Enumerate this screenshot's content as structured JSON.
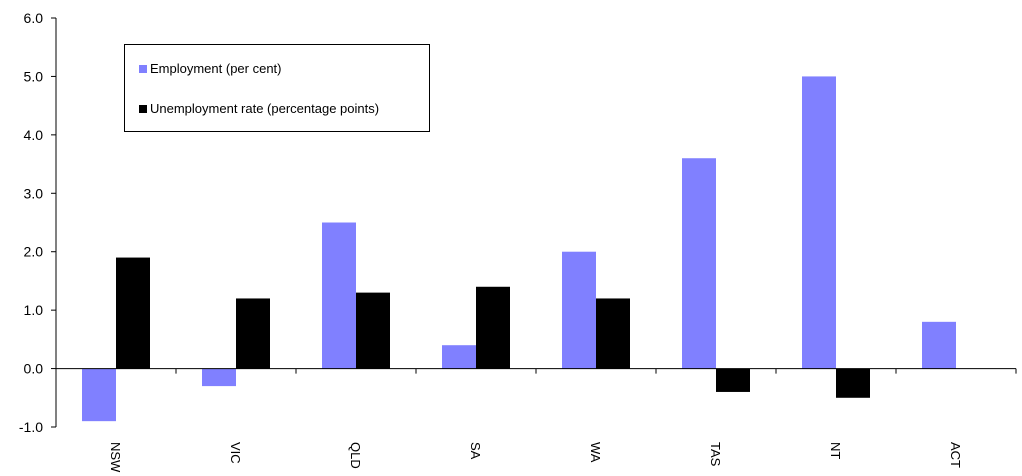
{
  "chart_data": {
    "type": "bar",
    "title": "",
    "xlabel": "",
    "ylabel": "",
    "categories": [
      "NSW",
      "VIC",
      "QLD",
      "SA",
      "WA",
      "TAS",
      "NT",
      "ACT"
    ],
    "series": [
      {
        "name": "Employment (per cent)",
        "color": "#8080ff",
        "values": [
          -0.9,
          -0.3,
          2.5,
          0.4,
          2.0,
          3.6,
          5.0,
          0.8
        ]
      },
      {
        "name": "Unemployment rate (percentage points)",
        "color": "#000000",
        "values": [
          1.9,
          1.2,
          1.3,
          1.4,
          1.2,
          -0.4,
          -0.5,
          null
        ]
      }
    ],
    "ylim": [
      -1.0,
      6.0
    ],
    "yticks": [
      "-1.0",
      "0.0",
      "1.0",
      "2.0",
      "3.0",
      "4.0",
      "5.0",
      "6.0"
    ],
    "grid": false,
    "legend_position": "top-left"
  }
}
